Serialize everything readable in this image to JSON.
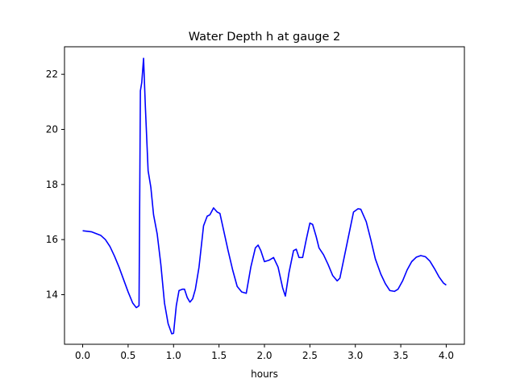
{
  "chart_data": {
    "type": "line",
    "title": "Water Depth h at gauge 2",
    "xlabel": "hours",
    "ylabel": "",
    "xlim": [
      -0.2,
      4.2
    ],
    "ylim": [
      12.2,
      23.0
    ],
    "xticks": [
      0.0,
      0.5,
      1.0,
      1.5,
      2.0,
      2.5,
      3.0,
      3.5,
      4.0
    ],
    "xtick_labels": [
      "0.0",
      "0.5",
      "1.0",
      "1.5",
      "2.0",
      "2.5",
      "3.0",
      "3.5",
      "4.0"
    ],
    "yticks": [
      14,
      16,
      18,
      20,
      22
    ],
    "ytick_labels": [
      "14",
      "16",
      "18",
      "20",
      "22"
    ],
    "grid": false,
    "series": [
      {
        "name": "",
        "color": "#0000ff",
        "points": [
          [
            0.0,
            16.32
          ],
          [
            0.1,
            16.28
          ],
          [
            0.2,
            16.15
          ],
          [
            0.25,
            16.0
          ],
          [
            0.3,
            15.75
          ],
          [
            0.35,
            15.4
          ],
          [
            0.4,
            15.0
          ],
          [
            0.45,
            14.55
          ],
          [
            0.5,
            14.1
          ],
          [
            0.55,
            13.7
          ],
          [
            0.59,
            13.53
          ],
          [
            0.6,
            13.55
          ],
          [
            0.62,
            13.6
          ],
          [
            0.635,
            21.4
          ],
          [
            0.65,
            21.7
          ],
          [
            0.67,
            22.58
          ],
          [
            0.69,
            20.8
          ],
          [
            0.72,
            18.5
          ],
          [
            0.75,
            17.9
          ],
          [
            0.78,
            16.9
          ],
          [
            0.82,
            16.2
          ],
          [
            0.86,
            15.1
          ],
          [
            0.9,
            13.7
          ],
          [
            0.94,
            12.95
          ],
          [
            0.98,
            12.58
          ],
          [
            1.0,
            12.6
          ],
          [
            1.03,
            13.6
          ],
          [
            1.06,
            14.15
          ],
          [
            1.1,
            14.2
          ],
          [
            1.12,
            14.2
          ],
          [
            1.15,
            13.9
          ],
          [
            1.18,
            13.73
          ],
          [
            1.21,
            13.85
          ],
          [
            1.24,
            14.2
          ],
          [
            1.28,
            15.0
          ],
          [
            1.33,
            16.5
          ],
          [
            1.37,
            16.85
          ],
          [
            1.4,
            16.9
          ],
          [
            1.44,
            17.15
          ],
          [
            1.48,
            17.0
          ],
          [
            1.51,
            16.95
          ],
          [
            1.55,
            16.35
          ],
          [
            1.6,
            15.6
          ],
          [
            1.65,
            14.9
          ],
          [
            1.7,
            14.3
          ],
          [
            1.75,
            14.1
          ],
          [
            1.8,
            14.05
          ],
          [
            1.85,
            15.0
          ],
          [
            1.9,
            15.7
          ],
          [
            1.93,
            15.8
          ],
          [
            1.96,
            15.6
          ],
          [
            2.0,
            15.2
          ],
          [
            2.05,
            15.25
          ],
          [
            2.1,
            15.35
          ],
          [
            2.15,
            15.0
          ],
          [
            2.2,
            14.25
          ],
          [
            2.23,
            13.95
          ],
          [
            2.27,
            14.8
          ],
          [
            2.32,
            15.6
          ],
          [
            2.35,
            15.65
          ],
          [
            2.38,
            15.35
          ],
          [
            2.42,
            15.35
          ],
          [
            2.46,
            16.0
          ],
          [
            2.5,
            16.6
          ],
          [
            2.53,
            16.55
          ],
          [
            2.57,
            16.1
          ],
          [
            2.6,
            15.7
          ],
          [
            2.65,
            15.45
          ],
          [
            2.7,
            15.1
          ],
          [
            2.75,
            14.7
          ],
          [
            2.8,
            14.5
          ],
          [
            2.83,
            14.6
          ],
          [
            2.88,
            15.4
          ],
          [
            2.93,
            16.2
          ],
          [
            2.98,
            17.0
          ],
          [
            3.03,
            17.12
          ],
          [
            3.06,
            17.1
          ],
          [
            3.12,
            16.65
          ],
          [
            3.17,
            16.0
          ],
          [
            3.22,
            15.3
          ],
          [
            3.28,
            14.75
          ],
          [
            3.33,
            14.4
          ],
          [
            3.38,
            14.15
          ],
          [
            3.43,
            14.12
          ],
          [
            3.47,
            14.2
          ],
          [
            3.52,
            14.5
          ],
          [
            3.57,
            14.9
          ],
          [
            3.62,
            15.2
          ],
          [
            3.67,
            15.36
          ],
          [
            3.72,
            15.42
          ],
          [
            3.77,
            15.38
          ],
          [
            3.82,
            15.22
          ],
          [
            3.87,
            14.95
          ],
          [
            3.92,
            14.65
          ],
          [
            3.97,
            14.42
          ],
          [
            4.0,
            14.35
          ]
        ]
      }
    ]
  }
}
